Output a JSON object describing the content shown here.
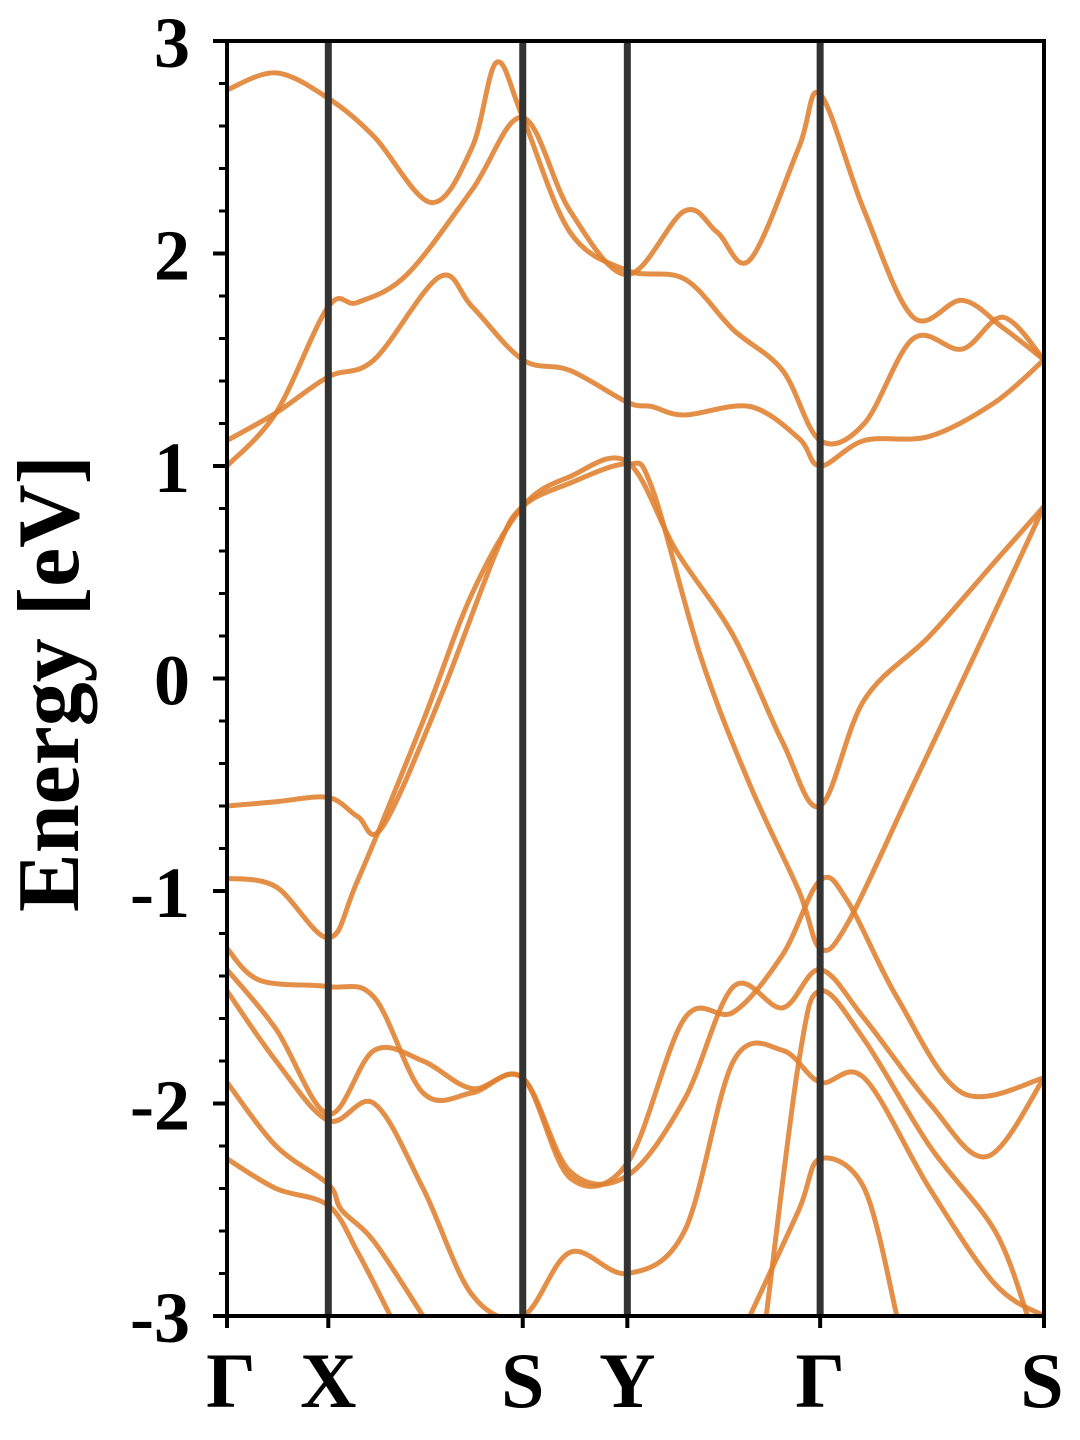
{
  "chart_data": {
    "type": "line",
    "title": "",
    "xlabel": "",
    "ylabel": "Energy [eV]",
    "ylim": [
      -3,
      3
    ],
    "yticks": [
      "3",
      "2",
      "1",
      "0",
      "-1",
      "-2",
      "-3"
    ],
    "kpoints": [
      {
        "label": "Γ",
        "x": 0.0
      },
      {
        "label": "X",
        "x": 0.124
      },
      {
        "label": "S",
        "x": 0.362
      },
      {
        "label": "Y",
        "x": 0.49
      },
      {
        "label": "Γ",
        "x": 0.726
      },
      {
        "label": "S",
        "x": 1.0
      }
    ],
    "grid": false,
    "line_color": "#e07f2f",
    "kpoint_line_color": "#333333",
    "bands": [
      [
        [
          0.0,
          -0.6
        ],
        [
          0.06,
          -0.58
        ],
        [
          0.124,
          -0.56
        ],
        [
          0.16,
          -0.65
        ],
        [
          0.19,
          -0.7
        ],
        [
          0.26,
          -0.1
        ],
        [
          0.33,
          0.6
        ],
        [
          0.362,
          0.81
        ],
        [
          0.42,
          0.92
        ],
        [
          0.49,
          1.01
        ],
        [
          0.52,
          0.9
        ],
        [
          0.58,
          0.1
        ],
        [
          0.64,
          -0.5
        ],
        [
          0.7,
          -1.0
        ],
        [
          0.726,
          -1.27
        ],
        [
          0.76,
          -1.15
        ],
        [
          0.84,
          -0.5
        ],
        [
          0.92,
          0.15
        ],
        [
          1.0,
          0.81
        ]
      ],
      [
        [
          0.0,
          -0.94
        ],
        [
          0.06,
          -0.98
        ],
        [
          0.124,
          -1.22
        ],
        [
          0.16,
          -0.95
        ],
        [
          0.24,
          -0.2
        ],
        [
          0.3,
          0.4
        ],
        [
          0.362,
          0.81
        ],
        [
          0.42,
          0.95
        ],
        [
          0.49,
          1.02
        ],
        [
          0.55,
          0.6
        ],
        [
          0.62,
          0.2
        ],
        [
          0.68,
          -0.3
        ],
        [
          0.726,
          -0.6
        ],
        [
          0.78,
          -0.1
        ],
        [
          0.86,
          0.2
        ],
        [
          0.94,
          0.55
        ],
        [
          1.0,
          0.81
        ]
      ],
      [
        [
          0.0,
          1.0
        ],
        [
          0.06,
          1.25
        ],
        [
          0.124,
          1.75
        ],
        [
          0.16,
          1.77
        ],
        [
          0.22,
          1.9
        ],
        [
          0.3,
          2.3
        ],
        [
          0.362,
          2.64
        ],
        [
          0.42,
          2.2
        ],
        [
          0.49,
          1.9
        ],
        [
          0.56,
          2.2
        ],
        [
          0.6,
          2.1
        ],
        [
          0.64,
          1.97
        ],
        [
          0.7,
          2.5
        ],
        [
          0.726,
          2.75
        ],
        [
          0.78,
          2.2
        ],
        [
          0.84,
          1.7
        ],
        [
          0.9,
          1.78
        ],
        [
          0.95,
          1.65
        ],
        [
          1.0,
          1.5
        ]
      ],
      [
        [
          0.0,
          1.12
        ],
        [
          0.06,
          1.25
        ],
        [
          0.124,
          1.42
        ],
        [
          0.18,
          1.5
        ],
        [
          0.26,
          1.89
        ],
        [
          0.3,
          1.75
        ],
        [
          0.362,
          1.5
        ],
        [
          0.42,
          1.45
        ],
        [
          0.49,
          1.3
        ],
        [
          0.52,
          1.28
        ],
        [
          0.56,
          1.24
        ],
        [
          0.64,
          1.28
        ],
        [
          0.7,
          1.13
        ],
        [
          0.726,
          1.0
        ],
        [
          0.78,
          1.12
        ],
        [
          0.86,
          1.14
        ],
        [
          0.94,
          1.3
        ],
        [
          1.0,
          1.5
        ]
      ],
      [
        [
          0.0,
          2.77
        ],
        [
          0.06,
          2.85
        ],
        [
          0.124,
          2.73
        ],
        [
          0.18,
          2.55
        ],
        [
          0.25,
          2.24
        ],
        [
          0.3,
          2.5
        ],
        [
          0.33,
          2.9
        ],
        [
          0.362,
          2.64
        ],
        [
          0.42,
          2.1
        ],
        [
          0.49,
          1.92
        ],
        [
          0.56,
          1.88
        ],
        [
          0.62,
          1.64
        ],
        [
          0.68,
          1.45
        ],
        [
          0.726,
          1.12
        ],
        [
          0.78,
          1.2
        ],
        [
          0.84,
          1.6
        ],
        [
          0.9,
          1.55
        ],
        [
          0.95,
          1.7
        ],
        [
          1.0,
          1.5
        ]
      ],
      [
        [
          0.0,
          -1.27
        ],
        [
          0.04,
          -1.42
        ],
        [
          0.124,
          -1.45
        ],
        [
          0.18,
          -1.5
        ],
        [
          0.24,
          -1.95
        ],
        [
          0.3,
          -1.95
        ],
        [
          0.362,
          -1.88
        ],
        [
          0.42,
          -2.35
        ],
        [
          0.49,
          -2.28
        ],
        [
          0.56,
          -1.6
        ],
        [
          0.62,
          -1.57
        ],
        [
          0.68,
          -1.3
        ],
        [
          0.726,
          -0.95
        ],
        [
          0.76,
          -1.05
        ],
        [
          0.82,
          -1.5
        ],
        [
          0.9,
          -1.95
        ],
        [
          1.0,
          -1.88
        ]
      ],
      [
        [
          0.0,
          -1.37
        ],
        [
          0.06,
          -1.65
        ],
        [
          0.124,
          -2.05
        ],
        [
          0.18,
          -1.75
        ],
        [
          0.24,
          -1.8
        ],
        [
          0.3,
          -1.93
        ],
        [
          0.362,
          -1.88
        ],
        [
          0.42,
          -2.32
        ],
        [
          0.49,
          -2.34
        ],
        [
          0.56,
          -1.98
        ],
        [
          0.62,
          -1.45
        ],
        [
          0.68,
          -1.55
        ],
        [
          0.726,
          -1.37
        ],
        [
          0.78,
          -1.6
        ],
        [
          0.86,
          -2.0
        ],
        [
          0.93,
          -2.25
        ],
        [
          1.0,
          -1.88
        ]
      ],
      [
        [
          0.0,
          -1.47
        ],
        [
          0.06,
          -1.8
        ],
        [
          0.124,
          -2.08
        ],
        [
          0.18,
          -2.0
        ],
        [
          0.24,
          -2.4
        ],
        [
          0.3,
          -2.9
        ],
        [
          0.362,
          -3.0
        ],
        [
          0.42,
          -2.7
        ],
        [
          0.49,
          -2.8
        ],
        [
          0.56,
          -2.6
        ],
        [
          0.62,
          -1.8
        ],
        [
          0.68,
          -1.75
        ],
        [
          0.726,
          -1.9
        ],
        [
          0.78,
          -1.88
        ],
        [
          0.86,
          -2.4
        ],
        [
          0.94,
          -2.85
        ],
        [
          1.0,
          -3.0
        ]
      ],
      [
        [
          0.0,
          -1.9
        ],
        [
          0.06,
          -2.2
        ],
        [
          0.124,
          -2.38
        ],
        [
          0.14,
          -2.5
        ],
        [
          0.18,
          -2.65
        ],
        [
          0.24,
          -3.0
        ]
      ],
      [
        [
          0.0,
          -2.26
        ],
        [
          0.06,
          -2.4
        ],
        [
          0.124,
          -2.48
        ],
        [
          0.16,
          -2.7
        ],
        [
          0.2,
          -3.0
        ]
      ],
      [
        [
          0.64,
          -3.0
        ],
        [
          0.7,
          -2.5
        ],
        [
          0.726,
          -2.26
        ],
        [
          0.78,
          -2.4
        ],
        [
          0.82,
          -3.0
        ]
      ],
      [
        [
          0.66,
          -3.0
        ],
        [
          0.7,
          -1.8
        ],
        [
          0.726,
          -1.47
        ],
        [
          0.78,
          -1.7
        ],
        [
          0.86,
          -2.2
        ],
        [
          0.94,
          -2.6
        ],
        [
          0.98,
          -3.0
        ]
      ]
    ]
  }
}
